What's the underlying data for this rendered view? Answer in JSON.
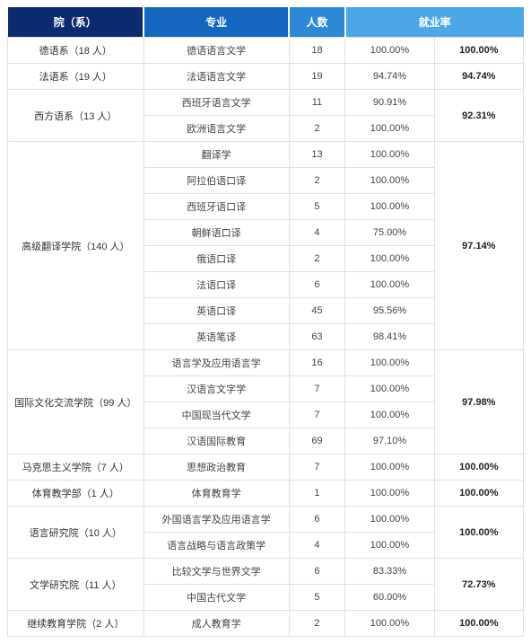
{
  "headers": {
    "dept": "院（系）",
    "major": "专业",
    "count": "人数",
    "rate": "就业率"
  },
  "groups": [
    {
      "dept": "德语系（18 人）",
      "drate": "100.00%",
      "rows": [
        {
          "major": "德语语言文学",
          "count": 18,
          "rrate": "100.00%"
        }
      ]
    },
    {
      "dept": "法语系（19 人）",
      "drate": "94.74%",
      "rows": [
        {
          "major": "法语语言文学",
          "count": 19,
          "rrate": "94.74%"
        }
      ]
    },
    {
      "dept": "西方语系",
      "dept_sub": "（13 人）",
      "drate": "92.31%",
      "rows": [
        {
          "major": "西班牙语言文学",
          "count": 11,
          "rrate": "90.91%"
        },
        {
          "major": "欧洲语言文学",
          "count": 2,
          "rrate": "100.00%"
        }
      ]
    },
    {
      "dept": "高级翻译学院",
      "dept_sub": "（140 人）",
      "drate": "97.14%",
      "rows": [
        {
          "major": "翻译学",
          "count": 13,
          "rrate": "100.00%"
        },
        {
          "major": "阿拉伯语口译",
          "count": 2,
          "rrate": "100.00%"
        },
        {
          "major": "西班牙语口译",
          "count": 5,
          "rrate": "100.00%"
        },
        {
          "major": "朝鲜语口译",
          "count": 4,
          "rrate": "75.00%"
        },
        {
          "major": "俄语口译",
          "count": 2,
          "rrate": "100.00%"
        },
        {
          "major": "法语口译",
          "count": 6,
          "rrate": "100.00%"
        },
        {
          "major": "英语口译",
          "count": 45,
          "rrate": "95.56%"
        },
        {
          "major": "英语笔译",
          "count": 63,
          "rrate": "98.41%"
        }
      ]
    },
    {
      "dept": "国际文化交流学院",
      "dept_sub": "（99 人）",
      "drate": "97.98%",
      "rows": [
        {
          "major": "语言学及应用语言学",
          "count": 16,
          "rrate": "100.00%"
        },
        {
          "major": "汉语言文字学",
          "count": 7,
          "rrate": "100.00%"
        },
        {
          "major": "中国现当代文学",
          "count": 7,
          "rrate": "100.00%"
        },
        {
          "major": "汉语国际教育",
          "count": 69,
          "rrate": "97.10%"
        }
      ]
    },
    {
      "dept": "马克思主义学院（7 人）",
      "drate": "100.00%",
      "rows": [
        {
          "major": "思想政治教育",
          "count": 7,
          "rrate": "100.00%"
        }
      ]
    },
    {
      "dept": "体育教学部（1 人）",
      "drate": "100.00%",
      "rows": [
        {
          "major": "体育教育学",
          "count": 1,
          "rrate": "100.00%"
        }
      ]
    },
    {
      "dept": "语言研究院",
      "dept_sub": "（10 人）",
      "drate": "100.00%",
      "rows": [
        {
          "major": "外国语言学及应用语言学",
          "count": 6,
          "rrate": "100.00%"
        },
        {
          "major": "语言战略与语言政策学",
          "count": 4,
          "rrate": "100.00%"
        }
      ]
    },
    {
      "dept": "文学研究院",
      "dept_sub": "（11 人）",
      "drate": "72.73%",
      "rows": [
        {
          "major": "比较文学与世界文学",
          "count": 6,
          "rrate": "83.33%"
        },
        {
          "major": "中国古代文学",
          "count": 5,
          "rrate": "60.00%"
        }
      ]
    },
    {
      "dept": "继续教育学院（2 人）",
      "drate": "100.00%",
      "rows": [
        {
          "major": "成人教育学",
          "count": 2,
          "rrate": "100.00%"
        }
      ]
    }
  ]
}
